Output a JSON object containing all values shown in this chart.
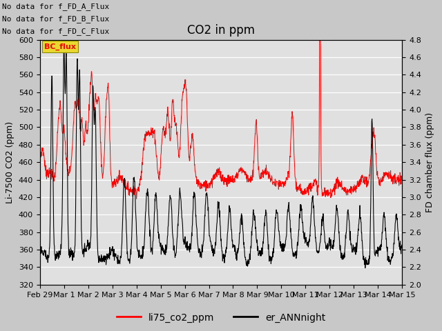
{
  "title": "CO2 in ppm",
  "ylabel_left": "Li-7500 CO2 (ppm)",
  "ylabel_right": "FD chamber flux (ppm)",
  "ylim_left": [
    320,
    600
  ],
  "ylim_right": [
    2.0,
    4.8
  ],
  "yticks_left": [
    320,
    340,
    360,
    380,
    400,
    420,
    440,
    460,
    480,
    500,
    520,
    540,
    560,
    580,
    600
  ],
  "yticks_right": [
    2.0,
    2.2,
    2.4,
    2.6,
    2.8,
    3.0,
    3.2,
    3.4,
    3.6,
    3.8,
    4.0,
    4.2,
    4.4,
    4.6,
    4.8
  ],
  "xtick_labels": [
    "Feb 29",
    "Mar 1",
    "Mar 2",
    "Mar 3",
    "Mar 4",
    "Mar 5",
    "Mar 6",
    "Mar 7",
    "Mar 8",
    "Mar 9",
    "Mar 10",
    "Mar 11",
    "Mar 12",
    "Mar 13",
    "Mar 14",
    "Mar 15"
  ],
  "xtick_positions": [
    0,
    1,
    2,
    3,
    4,
    5,
    6,
    7,
    8,
    9,
    10,
    11,
    12,
    13,
    14,
    15
  ],
  "no_data_text": [
    "No data for f_FD_A_Flux",
    "No data for f_FD_B_Flux",
    "No data for f_FD_C_Flux"
  ],
  "bc_flux_label": "BC_flux",
  "legend_labels": [
    "li75_co2_ppm",
    "er_ANNnight"
  ],
  "line_color_red": "#ff0000",
  "line_color_black": "#000000",
  "fig_facecolor": "#c8c8c8",
  "plot_facecolor": "#e0e0e0",
  "grid_color": "#ffffff",
  "title_fontsize": 12,
  "axis_label_fontsize": 9,
  "tick_fontsize": 8,
  "nodata_fontsize": 8,
  "legend_fontsize": 10
}
